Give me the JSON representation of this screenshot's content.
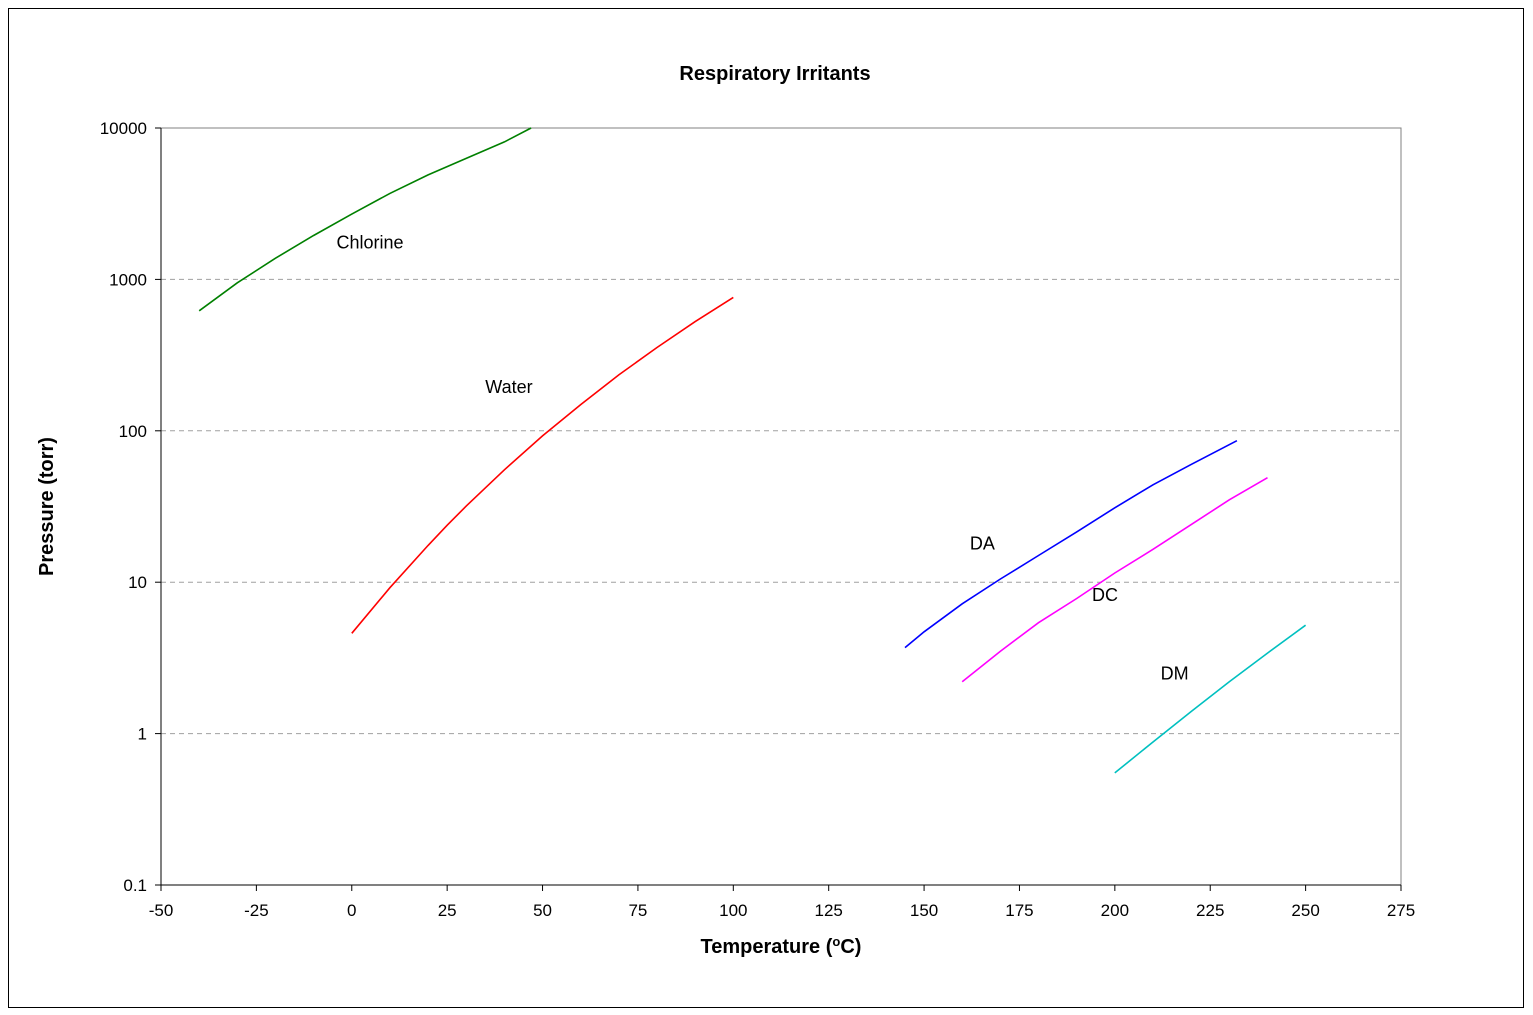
{
  "chart_data": {
    "type": "line",
    "title": "Respiratory Irritants",
    "xlabel": "Temperature (",
    "xlabel_sup": "o",
    "xlabel_end": "C)",
    "ylabel": "Pressure (torr)",
    "xlim": [
      -50,
      275
    ],
    "ylim": [
      0.1,
      10000
    ],
    "yscale": "log",
    "x_ticks": [
      "-50",
      "-25",
      "0",
      "25",
      "50",
      "75",
      "100",
      "125",
      "150",
      "175",
      "200",
      "225",
      "250",
      "275"
    ],
    "y_ticks": [
      "0.1",
      "1",
      "10",
      "100",
      "1000",
      "10000"
    ],
    "grid": "horizontal dashed",
    "legend": "none (inline labels)",
    "series": [
      {
        "name": "Chlorine",
        "color": "#008000",
        "x": [
          -40,
          -30,
          -20,
          -10,
          0,
          10,
          20,
          30,
          40,
          47
        ],
        "y": [
          620,
          950,
          1380,
          1950,
          2700,
          3700,
          4900,
          6300,
          8100,
          10000
        ],
        "label_x": -4,
        "label_y": 1750
      },
      {
        "name": "Water",
        "color": "#ff0000",
        "x": [
          0,
          10,
          20,
          25,
          30,
          40,
          50,
          60,
          70,
          80,
          90,
          100
        ],
        "y": [
          4.6,
          9.2,
          17.5,
          23.8,
          31.8,
          55.3,
          92.5,
          149,
          234,
          355,
          526,
          760
        ],
        "label_x": 35,
        "label_y": 195
      },
      {
        "name": "DA",
        "color": "#0000ff",
        "x": [
          145,
          150,
          160,
          170,
          180,
          190,
          200,
          210,
          220,
          232
        ],
        "y": [
          3.7,
          4.7,
          7.2,
          10.5,
          15,
          21.5,
          31,
          44,
          60,
          86
        ],
        "label_x": 162,
        "label_y": 18
      },
      {
        "name": "DC",
        "color": "#ff00ff",
        "x": [
          160,
          170,
          180,
          190,
          200,
          210,
          220,
          230,
          240
        ],
        "y": [
          2.2,
          3.5,
          5.4,
          7.8,
          11.5,
          16.5,
          24,
          35,
          49
        ],
        "label_x": 194,
        "label_y": 8.2
      },
      {
        "name": "DM",
        "color": "#00c0c0",
        "x": [
          200,
          210,
          220,
          230,
          240,
          250
        ],
        "y": [
          0.55,
          0.88,
          1.4,
          2.2,
          3.4,
          5.2
        ],
        "label_x": 212,
        "label_y": 2.5
      }
    ]
  }
}
